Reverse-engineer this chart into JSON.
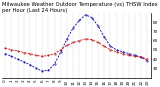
{
  "title": "Milwaukee Weather Outdoor Temperature (vs) THSW Index per Hour (Last 24 Hours)",
  "background_color": "#ffffff",
  "grid_color": "#888888",
  "hours": [
    0,
    1,
    2,
    3,
    4,
    5,
    6,
    7,
    8,
    9,
    10,
    11,
    12,
    13,
    14,
    15,
    16,
    17,
    18,
    19,
    20,
    21,
    22,
    23
  ],
  "temp_f": [
    52,
    50,
    49,
    47,
    46,
    44,
    43,
    44,
    46,
    50,
    55,
    58,
    60,
    62,
    61,
    58,
    54,
    50,
    48,
    46,
    44,
    43,
    42,
    40
  ],
  "thsw_f": [
    46,
    43,
    40,
    37,
    34,
    30,
    27,
    28,
    35,
    48,
    62,
    74,
    82,
    88,
    85,
    76,
    64,
    54,
    50,
    48,
    46,
    44,
    42,
    38
  ],
  "temp_color": "#cc0000",
  "thsw_color": "#0000cc",
  "ylim_min": 20,
  "ylim_max": 90,
  "ytick_values": [
    30,
    40,
    50,
    60,
    70,
    80
  ],
  "ytick_labels": [
    "30",
    "40",
    "50",
    "60",
    "70",
    "80"
  ],
  "title_fontsize": 3.8,
  "tick_fontsize": 3.0,
  "line_width": 0.6,
  "marker_size": 0.8
}
